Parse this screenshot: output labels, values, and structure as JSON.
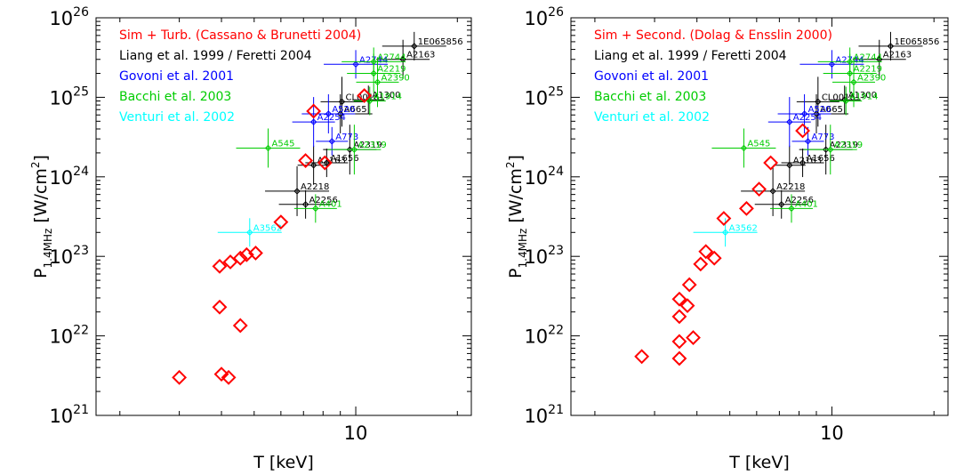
{
  "chart_data": [
    {
      "type": "scatter",
      "xlabel": "T [keV]",
      "ylabel": "P_1.4MHz [W/cm^2]",
      "xscale": "log",
      "yscale": "log",
      "xlim": [
        1.7,
        22
      ],
      "ylim": [
        1e+21,
        1e+26
      ],
      "x_ticks": [
        10
      ],
      "y_ticks": [
        "10^21",
        "10^22",
        "10^23",
        "10^24",
        "10^25",
        "10^26"
      ],
      "legend": [
        {
          "label": "Sim + Turb. (Cassano & Brunetti 2004)",
          "color": "#ff0000"
        },
        {
          "label": "Liang et al. 1999 / Feretti 2004",
          "color": "#000000"
        },
        {
          "label": "Govoni et al. 2001",
          "color": "#0000ff"
        },
        {
          "label": "Bacchi et al. 2003",
          "color": "#00cc00"
        },
        {
          "label": "Venturi et al. 2002",
          "color": "#00ffff"
        }
      ],
      "series": [
        {
          "name": "Sim + Turb. (Cassano & Brunetti 2004)",
          "color": "#ff0000",
          "marker": "diamond",
          "x": [
            3.0,
            4.0,
            4.2,
            3.95,
            4.55,
            3.95,
            4.25,
            4.55,
            4.75,
            5.05,
            6.0,
            7.1,
            8.1,
            7.5,
            10.6
          ],
          "y": [
            3e+21,
            3.3e+21,
            3e+21,
            2.3e+22,
            1.35e+22,
            7.5e+22,
            8.5e+22,
            9.5e+22,
            1.05e+23,
            1.1e+23,
            2.7e+23,
            1.6e+24,
            1.5e+24,
            6.7e+24,
            1.05e+25
          ]
        },
        {
          "name": "Liang et al. 1999 / Feretti 2004",
          "color": "#000000",
          "marker": "diamond-errorbar",
          "points": [
            {
              "label": "1E065856",
              "x": 14.9,
              "y": 4.4e+25
            },
            {
              "label": "A2163",
              "x": 13.8,
              "y": 3e+25
            },
            {
              "label": "CL0016",
              "x": 9.1,
              "y": 8.8e+24
            },
            {
              "label": "A1300",
              "x": 10.9,
              "y": 9.3e+24
            },
            {
              "label": "A665",
              "x": 9.0,
              "y": 6.2e+24
            },
            {
              "label": "A2319",
              "x": 9.6,
              "y": 2.2e+24
            },
            {
              "label": "A1656",
              "x": 8.2,
              "y": 1.5e+24
            },
            {
              "label": "A2163",
              "x": 7.5,
              "y": 1.4e+24
            },
            {
              "label": "A2218",
              "x": 6.7,
              "y": 6.6e+23
            },
            {
              "label": "A2256",
              "x": 7.1,
              "y": 4.5e+23
            }
          ]
        },
        {
          "name": "Govoni et al. 2001",
          "color": "#0000ff",
          "marker": "diamond-errorbar",
          "points": [
            {
              "label": "A2744",
              "x": 10.0,
              "y": 2.6e+25
            },
            {
              "label": "A520",
              "x": 8.3,
              "y": 6.2e+24
            },
            {
              "label": "A2254",
              "x": 7.5,
              "y": 4.9e+24
            },
            {
              "label": "A773",
              "x": 8.5,
              "y": 2.8e+24
            }
          ]
        },
        {
          "name": "Bacchi et al. 2003",
          "color": "#00cc00",
          "marker": "diamond-errorbar",
          "points": [
            {
              "label": "A2744",
              "x": 11.3,
              "y": 2.8e+25
            },
            {
              "label": "A2219",
              "x": 11.3,
              "y": 2e+25
            },
            {
              "label": "A2390",
              "x": 11.6,
              "y": 1.55e+25
            },
            {
              "label": "A1914",
              "x": 11.0,
              "y": 9e+24
            },
            {
              "label": "A545",
              "x": 5.5,
              "y": 2.3e+24
            },
            {
              "label": "A2319",
              "x": 9.9,
              "y": 2.2e+24
            },
            {
              "label": "A401",
              "x": 7.6,
              "y": 4e+23
            }
          ]
        },
        {
          "name": "Venturi et al. 2002",
          "color": "#00ffff",
          "marker": "diamond-errorbar",
          "points": [
            {
              "label": "A3562",
              "x": 4.85,
              "y": 2e+23
            }
          ]
        }
      ]
    },
    {
      "type": "scatter",
      "xlabel": "T [keV]",
      "ylabel": "P_1.4MHz [W/cm^2]",
      "xscale": "log",
      "yscale": "log",
      "xlim": [
        1.7,
        22
      ],
      "ylim": [
        1e+21,
        1e+26
      ],
      "x_ticks": [
        10
      ],
      "y_ticks": [
        "10^21",
        "10^22",
        "10^23",
        "10^24",
        "10^25",
        "10^26"
      ],
      "legend": [
        {
          "label": "Sim + Second. (Dolag & Ensslin 2000)",
          "color": "#ff0000"
        },
        {
          "label": "Liang et al. 1999 / Feretti 2004",
          "color": "#000000"
        },
        {
          "label": "Govoni et al. 2001",
          "color": "#0000ff"
        },
        {
          "label": "Bacchi et al. 2003",
          "color": "#00cc00"
        },
        {
          "label": "Venturi et al. 2002",
          "color": "#00ffff"
        }
      ],
      "series": [
        {
          "name": "Sim + Second. (Dolag & Ensslin 2000)",
          "color": "#ff0000",
          "marker": "diamond",
          "x": [
            2.75,
            3.55,
            3.55,
            3.9,
            3.55,
            3.75,
            3.55,
            3.8,
            4.1,
            4.5,
            4.25,
            4.8,
            5.6,
            6.1,
            6.6,
            8.2
          ],
          "y": [
            5.5e+21,
            5.2e+21,
            8.5e+21,
            9.5e+21,
            1.75e+22,
            2.4e+22,
            2.9e+22,
            4.4e+22,
            8e+22,
            9.5e+22,
            1.15e+23,
            3e+23,
            4e+23,
            7e+23,
            1.5e+24,
            3.8e+24
          ]
        },
        {
          "name": "Liang et al. 1999 / Feretti 2004",
          "color": "#000000",
          "marker": "diamond-errorbar",
          "points": [
            {
              "label": "1E065856",
              "x": 14.9,
              "y": 4.4e+25
            },
            {
              "label": "A2163",
              "x": 13.8,
              "y": 3e+25
            },
            {
              "label": "CL0016",
              "x": 9.1,
              "y": 8.8e+24
            },
            {
              "label": "A1300",
              "x": 10.9,
              "y": 9.3e+24
            },
            {
              "label": "A665",
              "x": 9.0,
              "y": 6.2e+24
            },
            {
              "label": "A2319",
              "x": 9.6,
              "y": 2.2e+24
            },
            {
              "label": "A1656",
              "x": 8.2,
              "y": 1.5e+24
            },
            {
              "label": "A2163",
              "x": 7.5,
              "y": 1.4e+24
            },
            {
              "label": "A2218",
              "x": 6.7,
              "y": 6.6e+23
            },
            {
              "label": "A2256",
              "x": 7.1,
              "y": 4.5e+23
            }
          ]
        },
        {
          "name": "Govoni et al. 2001",
          "color": "#0000ff",
          "marker": "diamond-errorbar",
          "points": [
            {
              "label": "A2744",
              "x": 10.0,
              "y": 2.6e+25
            },
            {
              "label": "A520",
              "x": 8.3,
              "y": 6.2e+24
            },
            {
              "label": "A2254",
              "x": 7.5,
              "y": 4.9e+24
            },
            {
              "label": "A773",
              "x": 8.5,
              "y": 2.8e+24
            }
          ]
        },
        {
          "name": "Bacchi et al. 2003",
          "color": "#00cc00",
          "marker": "diamond-errorbar",
          "points": [
            {
              "label": "A2744",
              "x": 11.3,
              "y": 2.8e+25
            },
            {
              "label": "A2219",
              "x": 11.3,
              "y": 2e+25
            },
            {
              "label": "A2390",
              "x": 11.6,
              "y": 1.55e+25
            },
            {
              "label": "A1914",
              "x": 11.0,
              "y": 9e+24
            },
            {
              "label": "A545",
              "x": 5.5,
              "y": 2.3e+24
            },
            {
              "label": "A2319",
              "x": 9.9,
              "y": 2.2e+24
            },
            {
              "label": "A401",
              "x": 7.6,
              "y": 4e+23
            }
          ]
        },
        {
          "name": "Venturi et al. 2002",
          "color": "#00ffff",
          "marker": "diamond-errorbar",
          "points": [
            {
              "label": "A3562",
              "x": 4.85,
              "y": 2e+23
            }
          ]
        }
      ]
    }
  ]
}
